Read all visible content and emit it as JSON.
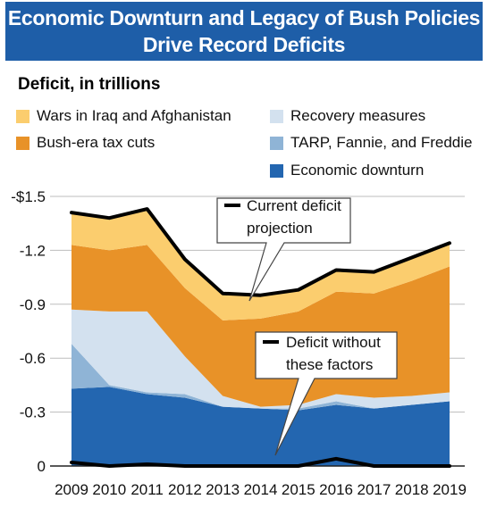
{
  "title_lines": [
    "Economic Downturn and Legacy of Bush Policies",
    "Drive Record Deficits"
  ],
  "subtitle": "Deficit, in trillions",
  "colors": {
    "banner": "#1e5ea8",
    "wars": "#fbcd6e",
    "tax_cuts": "#e89228",
    "recovery": "#d3e1ef",
    "tarp": "#8fb4d6",
    "downturn": "#2366b0"
  },
  "legend": [
    {
      "key": "wars",
      "label": "Wars in Iraq and Afghanistan"
    },
    {
      "key": "recovery",
      "label": "Recovery measures"
    },
    {
      "key": "tax_cuts",
      "label": "Bush-era tax cuts"
    },
    {
      "key": "tarp",
      "label": "TARP, Fannie, and Freddie"
    },
    {
      "key": "downturn",
      "label": "Economic downturn"
    }
  ],
  "callouts": {
    "current": [
      "Current deficit",
      "projection"
    ],
    "without": [
      "Deficit without",
      "these factors"
    ]
  },
  "chart_data": {
    "type": "area",
    "stacked": true,
    "x": [
      "2009",
      "2010",
      "2011",
      "2012",
      "2013",
      "2014",
      "2015",
      "2016",
      "2017",
      "2018",
      "2019"
    ],
    "y_ticks": [
      "-$1.5",
      "-1.2",
      "-0.9",
      "-0.6",
      "-0.3",
      "0"
    ],
    "ylim": [
      0,
      1.5
    ],
    "grid": "horizontal",
    "series": [
      {
        "key": "downturn",
        "name": "Economic downturn",
        "values": [
          0.43,
          0.44,
          0.4,
          0.38,
          0.33,
          0.32,
          0.31,
          0.34,
          0.32,
          0.34,
          0.36
        ]
      },
      {
        "key": "tarp",
        "name": "TARP, Fannie, and Freddie",
        "values": [
          0.25,
          0.01,
          0.01,
          0.02,
          0.0,
          0.0,
          0.01,
          0.02,
          0.0,
          0.0,
          0.0
        ]
      },
      {
        "key": "recovery",
        "name": "Recovery measures",
        "values": [
          0.19,
          0.41,
          0.45,
          0.21,
          0.06,
          0.01,
          0.02,
          0.04,
          0.06,
          0.05,
          0.05
        ]
      },
      {
        "key": "tax_cuts",
        "name": "Bush-era tax cuts",
        "values": [
          0.36,
          0.34,
          0.37,
          0.38,
          0.42,
          0.49,
          0.52,
          0.57,
          0.58,
          0.64,
          0.7
        ]
      },
      {
        "key": "wars",
        "name": "Wars in Iraq and Afghanistan",
        "values": [
          0.18,
          0.18,
          0.19,
          0.16,
          0.15,
          0.13,
          0.12,
          0.12,
          0.12,
          0.13,
          0.13
        ]
      }
    ],
    "lines": [
      {
        "key": "current",
        "name": "Current deficit projection",
        "values": [
          1.41,
          1.38,
          1.43,
          1.15,
          0.96,
          0.95,
          0.98,
          1.09,
          1.08,
          1.16,
          1.24
        ]
      },
      {
        "key": "without",
        "name": "Deficit without these factors",
        "values": [
          0.02,
          0.0,
          0.01,
          0.0,
          0.0,
          0.0,
          0.0,
          0.04,
          0.0,
          0.0,
          0.0
        ]
      }
    ]
  }
}
